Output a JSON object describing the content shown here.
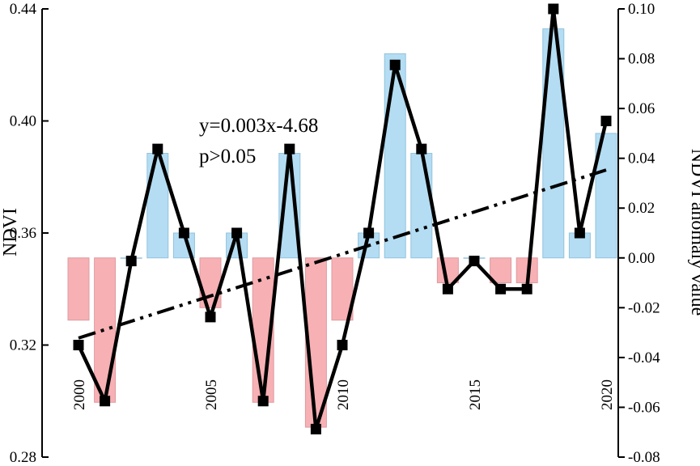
{
  "chart_data": {
    "type": "bar+line",
    "years": [
      2000,
      2001,
      2002,
      2003,
      2004,
      2005,
      2006,
      2007,
      2008,
      2009,
      2010,
      2011,
      2012,
      2013,
      2014,
      2015,
      2016,
      2017,
      2018,
      2019,
      2020
    ],
    "year_labels": [
      "2000",
      "2005",
      "2010",
      "2015",
      "2020"
    ],
    "year_label_values": [
      2000,
      2005,
      2010,
      2015,
      2020
    ],
    "left_axis": {
      "label": "NDVI",
      "ylim": [
        0.28,
        0.44
      ],
      "ticks": [
        "0.28",
        "0.32",
        "0.36",
        "0.40",
        "0.44"
      ],
      "tick_values": [
        0.28,
        0.32,
        0.36,
        0.4,
        0.44
      ]
    },
    "right_axis": {
      "label": "NDVI anomaly value",
      "ylim": [
        -0.08,
        0.1
      ],
      "ticks": [
        "-0.08",
        "-0.06",
        "-0.04",
        "-0.02",
        "0.00",
        "0.02",
        "0.04",
        "0.06",
        "0.08",
        "0.10"
      ],
      "tick_values": [
        -0.08,
        -0.06,
        -0.04,
        -0.02,
        0.0,
        0.02,
        0.04,
        0.06,
        0.08,
        0.1
      ]
    },
    "ndvi": [
      0.32,
      0.3,
      0.35,
      0.39,
      0.36,
      0.33,
      0.36,
      0.3,
      0.39,
      0.29,
      0.32,
      0.36,
      0.42,
      0.39,
      0.34,
      0.35,
      0.34,
      0.34,
      0.44,
      0.36,
      0.4
    ],
    "anomaly": [
      -0.025,
      -0.058,
      0.0,
      0.042,
      0.01,
      -0.02,
      0.01,
      -0.058,
      0.042,
      -0.068,
      -0.025,
      0.01,
      0.082,
      0.042,
      -0.01,
      0.0,
      -0.01,
      -0.01,
      0.092,
      0.01,
      0.05
    ],
    "trend": {
      "slope": 0.003,
      "intercept": -4.68
    },
    "annotation": [
      "y=0.003x-4.68",
      "p>0.05"
    ],
    "colors": {
      "positive_bar": "#a8d8f2",
      "negative_bar": "#f6a3a8",
      "line": "#000000"
    }
  }
}
